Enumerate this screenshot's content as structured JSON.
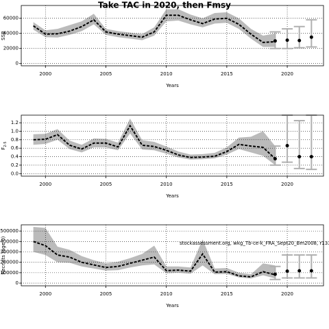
{
  "chart_data": [
    {
      "type": "line",
      "title": "Take TAC in 2020, then Fmsy",
      "y_label": "SSB",
      "x_label": "Years",
      "x": [
        1999,
        2000,
        2001,
        2002,
        2003,
        2004,
        2005,
        2006,
        2007,
        2008,
        2009,
        2010,
        2011,
        2012,
        2013,
        2014,
        2015,
        2016,
        2017,
        2018,
        2019
      ],
      "values": [
        50000,
        39000,
        39500,
        43000,
        49000,
        58000,
        42000,
        39000,
        37000,
        35000,
        42000,
        64000,
        64000,
        58000,
        53000,
        59000,
        60000,
        52000,
        39000,
        28000,
        29000
      ],
      "lower": [
        45000,
        35000,
        34500,
        38000,
        43000,
        52000,
        38000,
        35000,
        33000,
        31000,
        37000,
        56000,
        57000,
        52000,
        48000,
        53000,
        54000,
        46000,
        33000,
        22000,
        22000
      ],
      "upper": [
        55000,
        44000,
        46000,
        51000,
        56000,
        66000,
        46000,
        43000,
        41000,
        39000,
        48000,
        72000,
        72000,
        65000,
        60000,
        67000,
        68000,
        60000,
        46000,
        37000,
        40000
      ],
      "forecast_x": [
        2019,
        2020,
        2021,
        2022
      ],
      "forecast": [
        30000,
        31000,
        30500,
        35000
      ],
      "forecast_lower": [
        20000,
        20000,
        21000,
        22000
      ],
      "forecast_upper": [
        42000,
        46000,
        49000,
        58000
      ],
      "xlim": [
        1998,
        2023
      ],
      "xticks": [
        2000,
        2005,
        2010,
        2015,
        2020
      ],
      "ylim": [
        -3000,
        77000
      ],
      "yticks": [
        0,
        20000,
        40000,
        60000
      ],
      "grid": true,
      "band_color": "#bbbbbb",
      "line_color": "#000000",
      "forecast_color": "#b0b0b0"
    },
    {
      "type": "line",
      "y_label": "F",
      "y_label_sub": "2-5",
      "x_label": "Years",
      "x": [
        1999,
        2000,
        2001,
        2002,
        2003,
        2004,
        2005,
        2006,
        2007,
        2008,
        2009,
        2010,
        2011,
        2012,
        2013,
        2014,
        2015,
        2016,
        2017,
        2018,
        2019
      ],
      "values": [
        0.8,
        0.81,
        0.92,
        0.67,
        0.58,
        0.72,
        0.72,
        0.63,
        1.13,
        0.67,
        0.64,
        0.55,
        0.44,
        0.38,
        0.39,
        0.41,
        0.52,
        0.69,
        0.65,
        0.62,
        0.35
      ],
      "lower": [
        0.68,
        0.7,
        0.8,
        0.58,
        0.5,
        0.62,
        0.62,
        0.55,
        0.95,
        0.57,
        0.55,
        0.47,
        0.38,
        0.33,
        0.34,
        0.36,
        0.45,
        0.58,
        0.5,
        0.42,
        0.2
      ],
      "upper": [
        0.93,
        0.94,
        1.05,
        0.78,
        0.68,
        0.83,
        0.82,
        0.73,
        1.3,
        0.79,
        0.75,
        0.64,
        0.52,
        0.45,
        0.46,
        0.49,
        0.62,
        0.85,
        0.87,
        1.0,
        0.65
      ],
      "forecast_x": [
        2019,
        2020,
        2021,
        2022
      ],
      "forecast": [
        0.35,
        0.66,
        0.4,
        0.4
      ],
      "forecast_lower": [
        0.2,
        0.27,
        0.12,
        0.1
      ],
      "forecast_upper": [
        0.65,
        1.38,
        1.25,
        1.38
      ],
      "xlim": [
        1998,
        2023
      ],
      "xticks": [
        2000,
        2005,
        2010,
        2015,
        2020
      ],
      "ylim": [
        -0.06,
        1.38
      ],
      "yticks": [
        {
          "value": 0,
          "label": "0.0"
        },
        0.2,
        0.4,
        0.6,
        0.8,
        {
          "value": 1,
          "label": "1.0"
        },
        1.2
      ],
      "grid": true,
      "band_color": "#bbbbbb",
      "line_color": "#000000",
      "forecast_color": "#b0b0b0"
    },
    {
      "type": "line",
      "y_label": "Recruits (age 0)",
      "x_label": "Years",
      "annotation": "stockassessment.org, wkg_Tb-ce-k_FRA_Sept20_Bm2008, r13344 , git: c28bdc2e4ae",
      "x": [
        1999,
        2000,
        2001,
        2002,
        2003,
        2004,
        2005,
        2006,
        2007,
        2008,
        2009,
        2010,
        2011,
        2012,
        2013,
        2014,
        2015,
        2016,
        2017,
        2018,
        2019
      ],
      "values": [
        400000,
        360000,
        270000,
        250000,
        200000,
        175000,
        150000,
        160000,
        190000,
        220000,
        250000,
        120000,
        125000,
        115000,
        280000,
        105000,
        110000,
        70000,
        60000,
        110000,
        80000
      ],
      "lower": [
        300000,
        270000,
        200000,
        195000,
        160000,
        140000,
        120000,
        125000,
        150000,
        170000,
        180000,
        95000,
        100000,
        90000,
        170000,
        85000,
        88000,
        55000,
        45000,
        75000,
        45000
      ],
      "upper": [
        540000,
        530000,
        350000,
        320000,
        260000,
        220000,
        190000,
        205000,
        240000,
        280000,
        360000,
        160000,
        160000,
        150000,
        420000,
        140000,
        145000,
        100000,
        85000,
        190000,
        170000
      ],
      "forecast_x": [
        2019,
        2020,
        2021,
        2022
      ],
      "forecast": [
        85000,
        115000,
        118000,
        118000
      ],
      "forecast_lower": [
        35000,
        50000,
        50000,
        50000
      ],
      "forecast_upper": [
        160000,
        270000,
        270000,
        270000
      ],
      "xlim": [
        1998,
        2023
      ],
      "xticks": [
        2000,
        2005,
        2010,
        2015,
        2020
      ],
      "ylim": [
        -26000,
        560000
      ],
      "yticks": [
        0,
        100000,
        200000,
        300000,
        400000,
        500000
      ],
      "grid": true,
      "band_color": "#bbbbbb",
      "line_color": "#000000",
      "forecast_color": "#b0b0b0"
    }
  ]
}
